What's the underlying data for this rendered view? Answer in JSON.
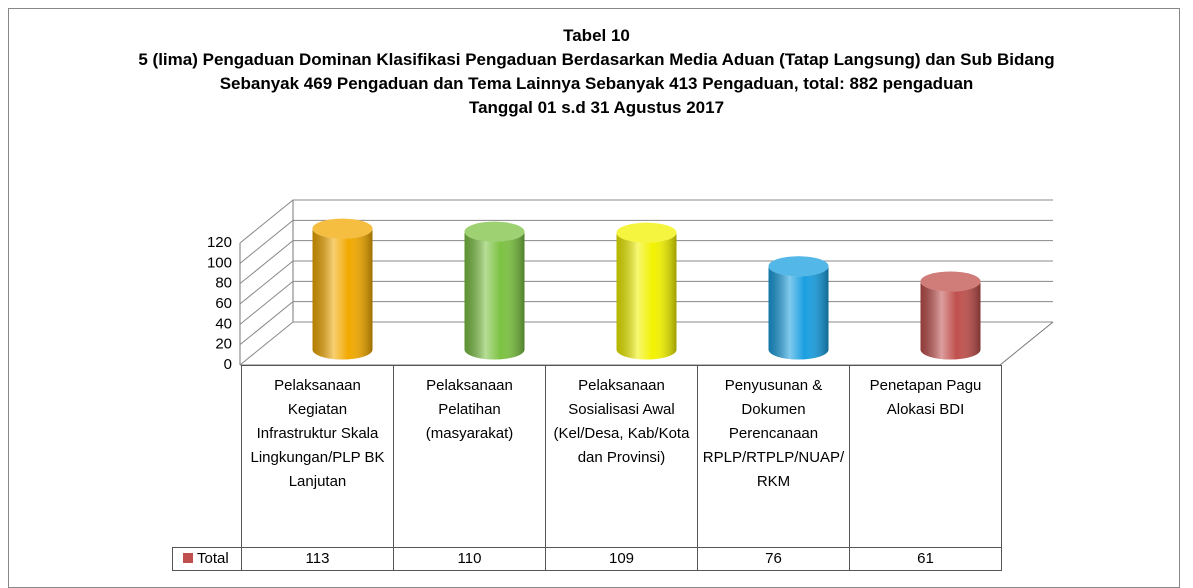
{
  "chart_data": {
    "type": "bar3d-cylinder",
    "title": "Tabel 10",
    "subtitle": [
      "5 (lima) Pengaduan Dominan Klasifikasi Pengaduan Berdasarkan Media Aduan (Tatap Langsung) dan Sub Bidang Sebanyak 469  Pengaduan dan Tema Lainnya Sebanyak 413 Pengaduan, total: 882 pengaduan",
      "Tanggal  01 s.d 31 Agustus 2017"
    ],
    "categories": [
      "Pelaksanaan Kegiatan Infrastruktur Skala Lingkungan/PLP BK Lanjutan",
      "Pelaksanaan Pelatihan (masyarakat)",
      "Pelaksanaan Sosialisasi Awal (Kel/Desa, Kab/Kota dan Provinsi)",
      "Penyusunan & Dokumen Perencanaan RPLP/RTPLP/NUAP/RKM",
      "Penetapan Pagu Alokasi BDI"
    ],
    "series": [
      {
        "name": "Total",
        "color": "#c0504d",
        "values": [
          113,
          110,
          109,
          76,
          61
        ]
      }
    ],
    "colors": [
      "#f2a900",
      "#7cc242",
      "#f2f200",
      "#1a9fe0",
      "#c0504d"
    ],
    "ylim": [
      0,
      120
    ],
    "yticks": [
      0,
      20,
      40,
      60,
      80,
      100,
      120
    ],
    "grid": true
  }
}
